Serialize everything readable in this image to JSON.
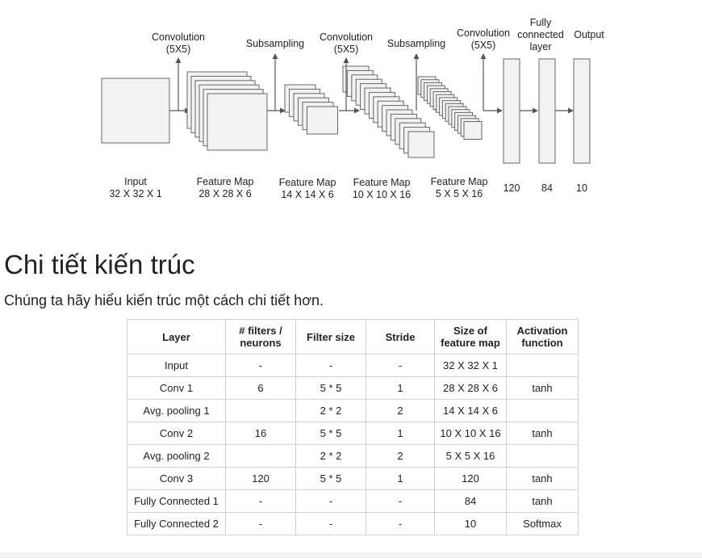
{
  "diagram": {
    "top_labels": {
      "conv1": [
        "Convolution",
        "(5X5)"
      ],
      "sub1": "Subsampling",
      "conv2": [
        "Convolution",
        "(5X5)"
      ],
      "sub2": "Subsampling",
      "conv3": [
        "Convolution",
        "(5X5)"
      ],
      "fc": [
        "Fully",
        "connected",
        "layer"
      ],
      "output": "Output"
    },
    "bottom_labels": [
      [
        "Input",
        "32 X 32 X 1"
      ],
      [
        "Feature Map",
        "28 X 28 X 6"
      ],
      [
        "Feature Map",
        "14 X 14 X 6"
      ],
      [
        "Feature Map",
        "10 X 10 X 16"
      ],
      [
        "Feature Map",
        "5 X 5 X 16"
      ],
      [
        "120"
      ],
      [
        "84"
      ],
      [
        "10"
      ]
    ]
  },
  "article": {
    "heading": "Chi tiết kiến trúc",
    "intro": "Chúng ta hãy hiểu kiến trúc một cách chi tiết hơn."
  },
  "table": {
    "headers": [
      "Layer",
      "# filters / neurons",
      "Filter size",
      "Stride",
      "Size of feature map",
      "Activation function"
    ],
    "rows": [
      [
        "Input",
        "-",
        "-",
        "-",
        "32 X 32 X 1",
        ""
      ],
      [
        "Conv 1",
        "6",
        "5 * 5",
        "1",
        "28 X 28 X 6",
        "tanh"
      ],
      [
        "Avg. pooling 1",
        "",
        "2 * 2",
        "2",
        "14 X 14 X 6",
        ""
      ],
      [
        "Conv 2",
        "16",
        "5 * 5",
        "1",
        "10 X 10 X 16",
        "tanh"
      ],
      [
        "Avg. pooling 2",
        "",
        "2 * 2",
        "2",
        "5 X 5 X 16",
        ""
      ],
      [
        "Conv 3",
        "120",
        "5 * 5",
        "1",
        "120",
        "tanh"
      ],
      [
        "Fully Connected 1",
        "-",
        "-",
        "-",
        "84",
        "tanh"
      ],
      [
        "Fully Connected 2",
        "-",
        "-",
        "-",
        "10",
        "Softmax"
      ]
    ]
  }
}
